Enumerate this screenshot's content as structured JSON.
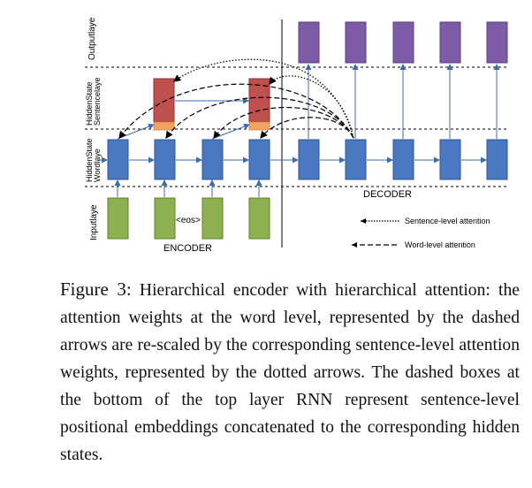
{
  "layer_labels": {
    "output": "Outputlaye",
    "sentence_hidden": [
      "HiddenState",
      "Sentencelaye"
    ],
    "word_hidden": [
      "HiddenState",
      "Wordlaye"
    ],
    "input": "Inputlaye"
  },
  "encoder_label": "ENCODER",
  "decoder_label": "DECODER",
  "eos_label": "<eos>",
  "legend": {
    "sentence_attention": "Sentence-level attention",
    "word_attention": "Word-level attention"
  },
  "colors": {
    "input": "#8db14f",
    "word_hidden": "#4a78c0",
    "sentence_hidden": "#c0504d",
    "positional": "#f4a261",
    "output": "#7d5ba6",
    "arrow": "#3b6bb0"
  },
  "caption": {
    "label": "Figure 3:",
    "text": "Hierarchical encoder with hierarchical attention: the attention weights at the word level, represented by the dashed arrows are re-scaled by the corresponding sentence-level attention weights, represented by the dotted arrows. The dashed boxes at the bottom of the top layer RNN represent sentence-level positional embeddings concatenated to the corresponding hidden states."
  }
}
